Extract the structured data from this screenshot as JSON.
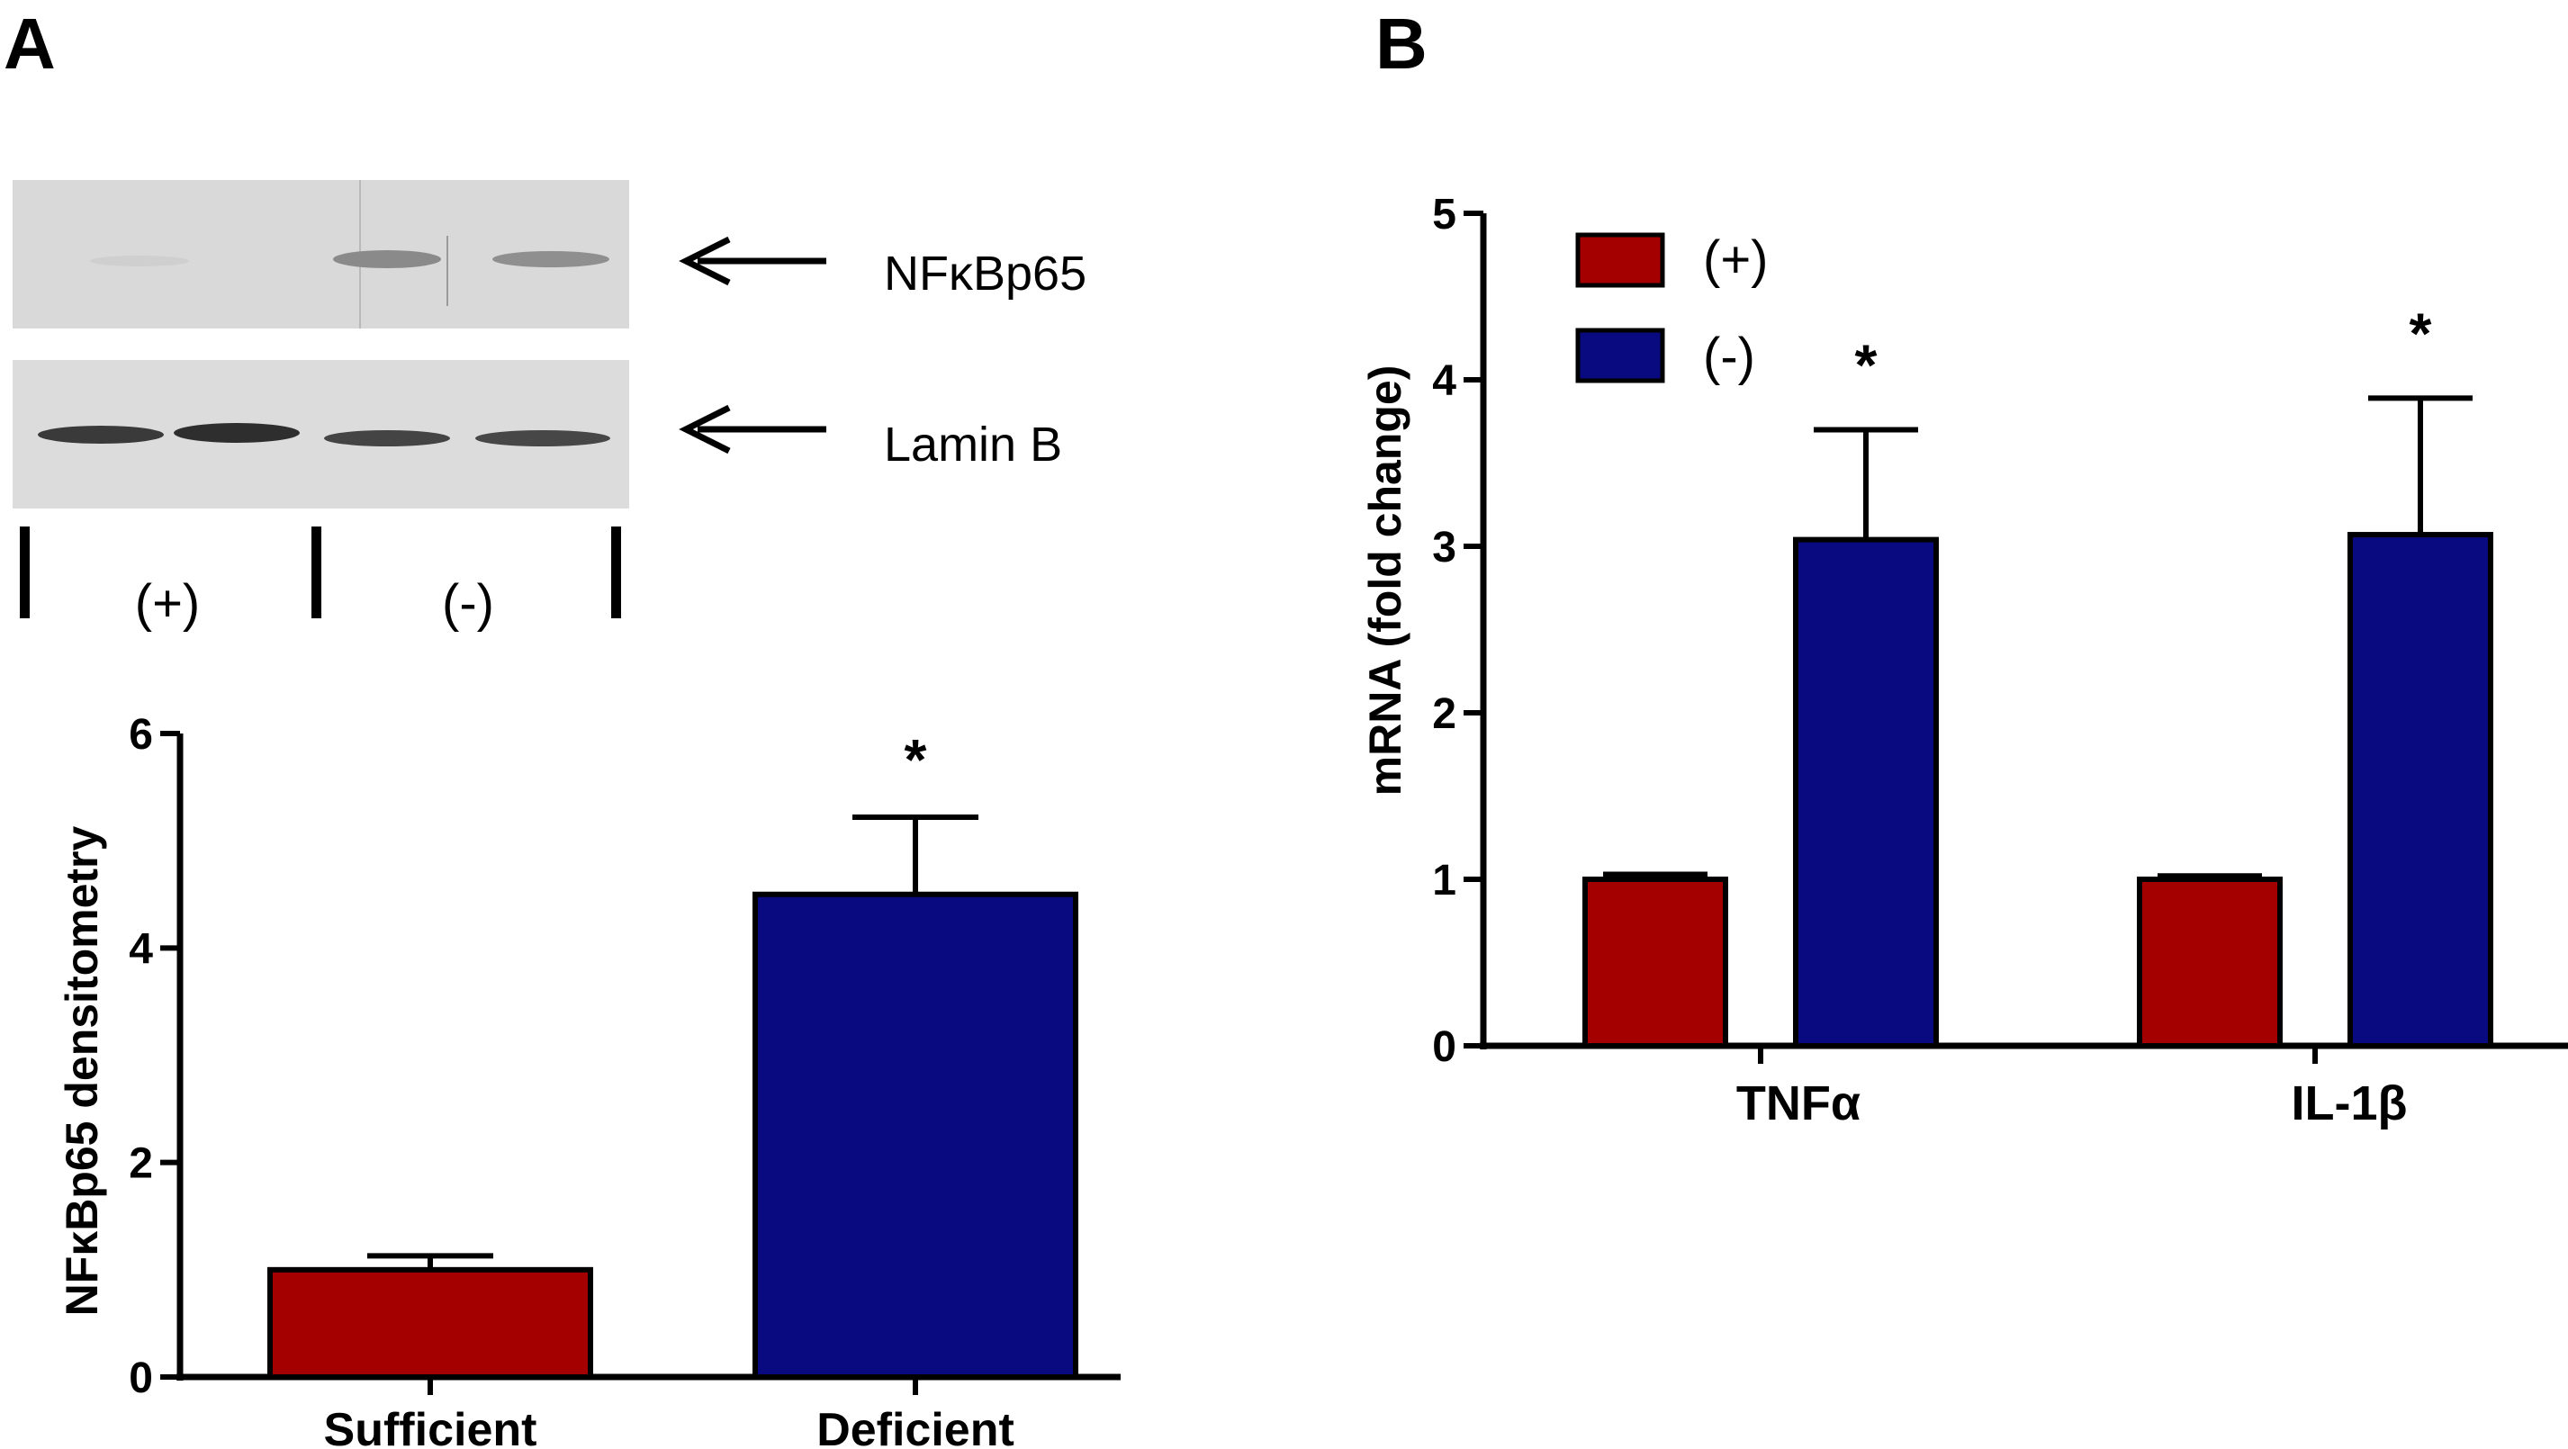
{
  "panels": {
    "a": {
      "letter": "A"
    },
    "b": {
      "letter": "B"
    }
  },
  "blot": {
    "bands": [
      "NFκBp65",
      "Lamin B"
    ],
    "groups": [
      "(+)",
      "(-)"
    ],
    "colors": {
      "background": "#d9d9d9",
      "band_p65": "#8a8a8a",
      "band_lamin": "#3a3a3a"
    }
  },
  "chart_data": [
    {
      "type": "bar",
      "panel": "A",
      "title": "",
      "xlabel": "",
      "ylabel": "NFκBp65 densitometry",
      "ylim": [
        0,
        6
      ],
      "yticks": [
        "0",
        "2",
        "4",
        "6"
      ],
      "categories": [
        "Sufficient",
        "Deficient"
      ],
      "values": [
        1.0,
        4.5
      ],
      "errors": [
        0.13,
        0.72
      ],
      "colors": [
        "#a50000",
        "#0a0a80"
      ],
      "annotations": [
        {
          "category": "Deficient",
          "text": "*"
        }
      ]
    },
    {
      "type": "bar",
      "panel": "B",
      "title": "",
      "xlabel": "",
      "ylabel": "mRNA (fold change)",
      "ylim": [
        0,
        5
      ],
      "yticks": [
        "0",
        "1",
        "2",
        "3",
        "4",
        "5"
      ],
      "categories": [
        "TNFα",
        "IL-1β"
      ],
      "series": [
        {
          "name": "(+)",
          "color": "#a50000",
          "values": [
            1.0,
            1.0
          ],
          "errors": [
            0.03,
            0.02
          ]
        },
        {
          "name": "(-)",
          "color": "#0a0a80",
          "values": [
            3.04,
            3.07
          ],
          "errors": [
            0.66,
            0.82
          ]
        }
      ],
      "legend": {
        "position": "top-left",
        "entries": [
          "(+)",
          "(-)"
        ]
      },
      "annotations": [
        {
          "category": "TNFα",
          "series": "(-)",
          "text": "*"
        },
        {
          "category": "IL-1β",
          "series": "(-)",
          "text": "*"
        }
      ]
    }
  ]
}
